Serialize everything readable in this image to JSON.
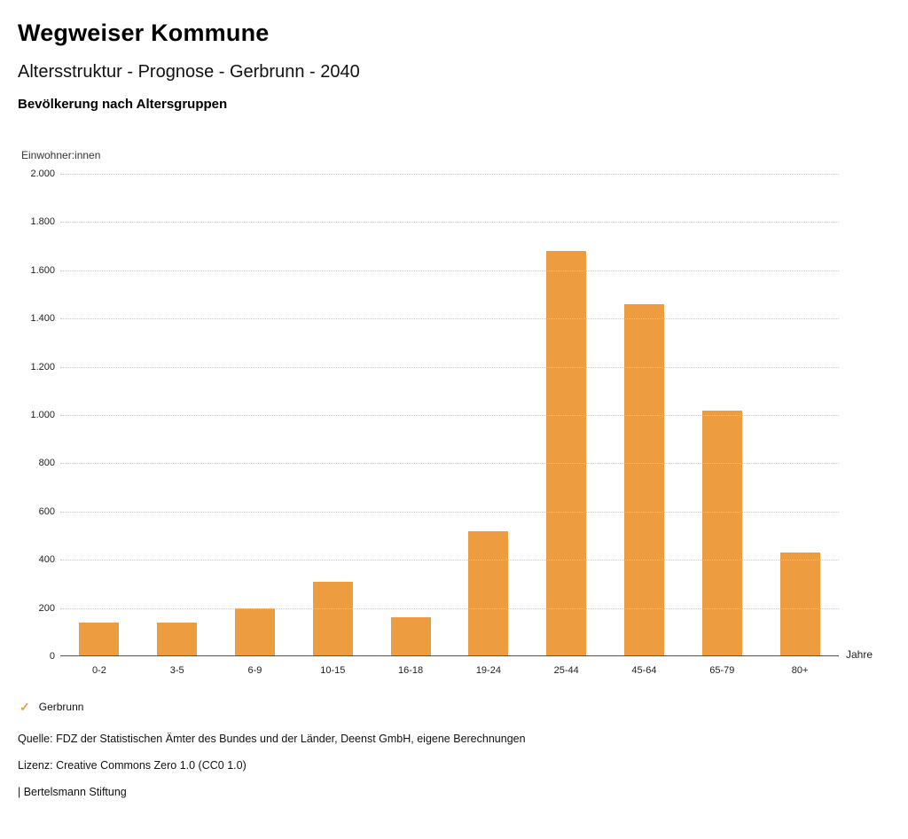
{
  "header": {
    "title": "Wegweiser Kommune",
    "subtitle": "Altersstruktur - Prognose - Gerbrunn - 2040",
    "chart_heading": "Bevölkerung nach Altersgruppen"
  },
  "chart_data": {
    "type": "bar",
    "title": "Bevölkerung nach Altersgruppen",
    "ylabel": "Einwohner:innen",
    "xlabel": "Jahre",
    "categories": [
      "0-2",
      "3-5",
      "6-9",
      "10-15",
      "16-18",
      "19-24",
      "25-44",
      "45-64",
      "65-79",
      "80+"
    ],
    "values": [
      140,
      140,
      200,
      310,
      160,
      520,
      1680,
      1460,
      1020,
      430
    ],
    "series_name": "Gerbrunn",
    "ylim": [
      0,
      2000
    ],
    "ytick_step": 200,
    "ytick_labels": [
      "0",
      "200",
      "400",
      "600",
      "800",
      "1.000",
      "1.200",
      "1.400",
      "1.600",
      "1.800",
      "2.000"
    ],
    "grid": true,
    "legend_position": "bottom-left",
    "bar_color": "#ED9C40"
  },
  "legend": {
    "check_icon": "✓",
    "label": "Gerbrunn",
    "color": "#ED9C40"
  },
  "footer": {
    "source": "Quelle: FDZ der Statistischen Ämter des Bundes und der Länder, Deenst GmbH, eigene Berechnungen",
    "license": "Lizenz: Creative Commons Zero 1.0 (CC0 1.0)",
    "attribution": "| Bertelsmann Stiftung"
  }
}
